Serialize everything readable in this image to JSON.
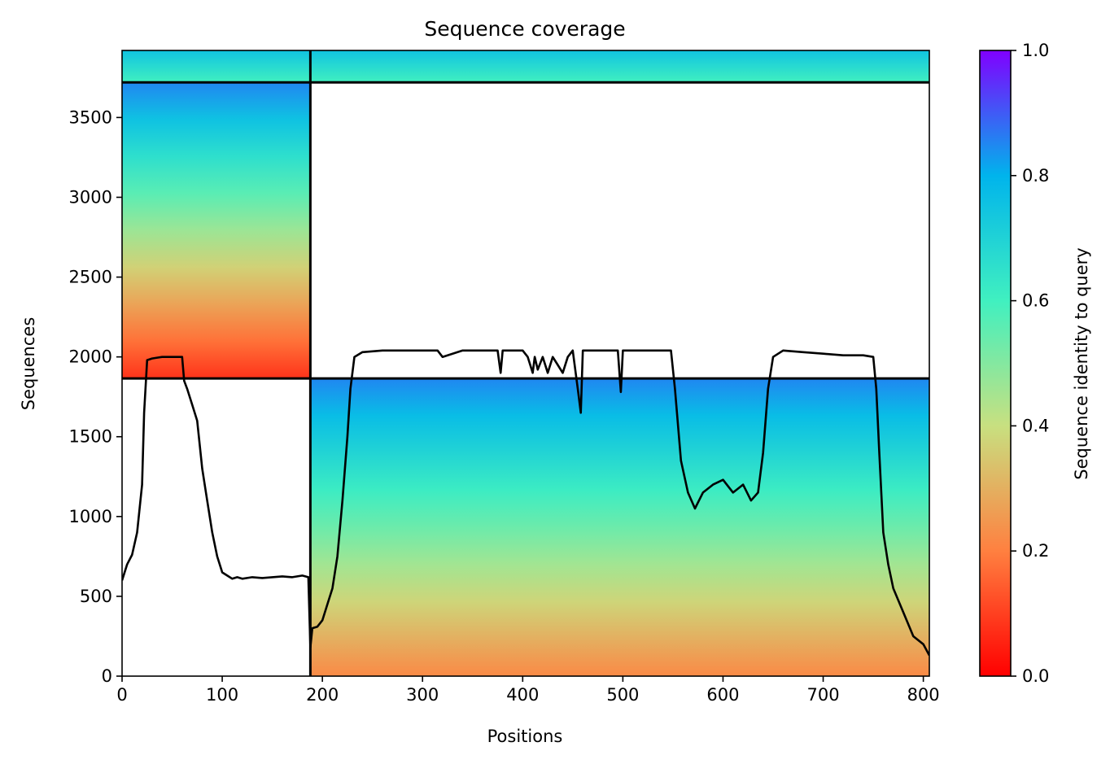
{
  "chart_data": {
    "type": "heatmap",
    "title": "Sequence coverage",
    "xlabel": "Positions",
    "ylabel": "Sequences",
    "xlim": [
      0,
      806
    ],
    "ylim": [
      0,
      3920
    ],
    "xticks": [
      0,
      100,
      200,
      300,
      400,
      500,
      600,
      700,
      800
    ],
    "yticks": [
      0,
      500,
      1000,
      1500,
      2000,
      2500,
      3000,
      3500
    ],
    "colorbar": {
      "label": "Sequence identity to query",
      "range": [
        0.0,
        1.0
      ],
      "ticks": [
        "0.0",
        "0.2",
        "0.4",
        "0.6",
        "0.8",
        "1.0"
      ],
      "colormap": "rainbow_r",
      "colors": [
        "#ff0000",
        "#ff8040",
        "#c8e080",
        "#40f0c0",
        "#00b4ec",
        "#8000ff"
      ]
    },
    "chain_boundary_x": 188,
    "section_boundaries_y": [
      1865,
      3720
    ],
    "blocks": [
      {
        "name": "chain-A-paired",
        "x": [
          0,
          188
        ],
        "y": [
          3720,
          3920
        ],
        "identity_top": 0.75,
        "identity_bottom": 0.6
      },
      {
        "name": "chain-B-paired",
        "x": [
          188,
          806
        ],
        "y": [
          3720,
          3920
        ],
        "identity_top": 0.75,
        "identity_bottom": 0.6
      },
      {
        "name": "chain-A-unpaired",
        "x": [
          0,
          188
        ],
        "y": [
          1865,
          3720
        ],
        "identity_top": 0.85,
        "identity_bottom": 0.08
      },
      {
        "name": "chain-B-unpaired",
        "x": [
          188,
          806
        ],
        "y": [
          0,
          1865
        ],
        "identity_top": 0.85,
        "identity_bottom": 0.22
      }
    ],
    "coverage_line": {
      "x": [
        0,
        5,
        10,
        15,
        20,
        22,
        25,
        30,
        35,
        40,
        45,
        50,
        55,
        60,
        62,
        65,
        70,
        75,
        80,
        85,
        90,
        95,
        100,
        105,
        110,
        115,
        120,
        130,
        140,
        150,
        160,
        170,
        180,
        186,
        188,
        190,
        195,
        200,
        205,
        210,
        215,
        220,
        225,
        228,
        232,
        240,
        260,
        280,
        300,
        315,
        320,
        340,
        360,
        375,
        378,
        380,
        385,
        395,
        400,
        405,
        410,
        412,
        415,
        420,
        425,
        430,
        435,
        440,
        445,
        450,
        455,
        458,
        460,
        465,
        480,
        495,
        498,
        500,
        505,
        520,
        540,
        548,
        552,
        558,
        565,
        572,
        580,
        590,
        600,
        610,
        620,
        628,
        635,
        640,
        645,
        650,
        660,
        680,
        700,
        720,
        740,
        750,
        753,
        756,
        760,
        765,
        770,
        780,
        790,
        800,
        806
      ],
      "y": [
        600,
        700,
        760,
        900,
        1200,
        1650,
        1980,
        1990,
        1995,
        2000,
        2000,
        2000,
        2000,
        2000,
        1850,
        1800,
        1700,
        1600,
        1300,
        1100,
        900,
        750,
        650,
        630,
        610,
        620,
        610,
        620,
        615,
        620,
        625,
        620,
        630,
        620,
        180,
        300,
        310,
        350,
        450,
        550,
        750,
        1100,
        1500,
        1800,
        2000,
        2030,
        2040,
        2040,
        2040,
        2040,
        2000,
        2040,
        2040,
        2040,
        1900,
        2040,
        2040,
        2040,
        2040,
        2000,
        1900,
        2000,
        1920,
        2000,
        1900,
        2000,
        1950,
        1900,
        2000,
        2040,
        1800,
        1650,
        2040,
        2040,
        2040,
        2040,
        1780,
        2040,
        2040,
        2040,
        2040,
        2040,
        1800,
        1350,
        1150,
        1050,
        1150,
        1200,
        1230,
        1150,
        1200,
        1100,
        1150,
        1400,
        1800,
        2000,
        2040,
        2030,
        2020,
        2010,
        2010,
        2000,
        1800,
        1400,
        900,
        700,
        550,
        400,
        250,
        200,
        130
      ]
    },
    "grid": false,
    "legend": "none"
  }
}
